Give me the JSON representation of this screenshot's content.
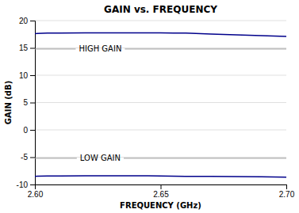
{
  "chart_data": {
    "type": "line",
    "title": "GAIN vs. FREQUENCY",
    "x_label": "FREQUENCY (GHz)",
    "y_label": "GAIN (dB)",
    "color": "#00008B",
    "x": [
      2.6,
      2.601,
      2.605,
      2.61,
      2.62,
      2.63,
      2.64,
      2.645,
      2.65,
      2.655,
      2.66,
      2.67,
      2.68,
      2.69,
      2.7
    ],
    "series": [
      {
        "values": [
          17.6,
          17.65,
          17.7,
          17.72,
          17.75,
          17.76,
          17.76,
          17.76,
          17.75,
          17.72,
          17.7,
          17.55,
          17.4,
          17.25,
          17.1
        ]
      },
      {
        "values": [
          -8.5,
          -8.48,
          -8.45,
          -8.43,
          -8.42,
          -8.42,
          -8.42,
          -8.42,
          -8.45,
          -8.48,
          -8.5,
          -8.52,
          -8.55,
          -8.6,
          -8.65
        ]
      }
    ],
    "xlim": [
      2.6,
      2.7
    ],
    "ylim": [
      -10,
      20
    ],
    "xticks": [
      {
        "value": 2.6,
        "label": "2.60"
      },
      2.65,
      {
        "value": 2.7,
        "label": "2.70"
      }
    ],
    "yticks": [
      -10,
      -5,
      0,
      5,
      10,
      15,
      20
    ],
    "grid": true,
    "annotations": [
      {
        "text": "HIGH GAIN",
        "x": 2.626,
        "y": 14.8
      },
      {
        "text": "LOW GAIN",
        "x": 2.626,
        "y": -5.2
      }
    ]
  }
}
